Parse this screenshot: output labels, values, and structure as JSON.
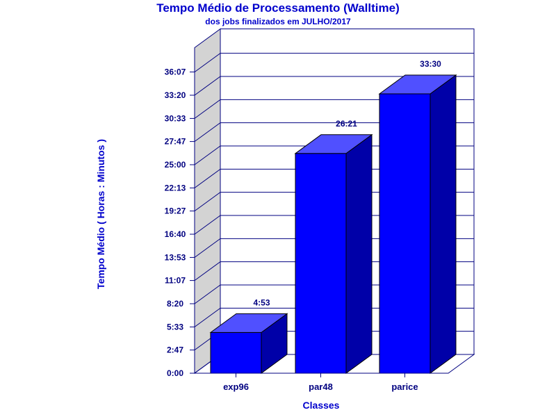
{
  "chart_data": {
    "type": "bar",
    "title": "Tempo Médio de Processamento (Walltime)",
    "subtitle": "dos jobs finalizados em JULHO/2017",
    "xlabel": "Classes",
    "ylabel": "Tempo Médio ( Horas : Minutos )",
    "categories": [
      "exp96",
      "par48",
      "parice"
    ],
    "values": [
      4.883,
      26.35,
      33.5
    ],
    "value_labels": [
      "4:53",
      "26:21",
      "33:30"
    ],
    "ylim": [
      0,
      39.033
    ],
    "yticks": [
      0,
      2.783,
      5.55,
      8.333,
      11.117,
      13.883,
      16.667,
      19.45,
      22.217,
      25.0,
      27.783,
      30.55,
      33.333,
      36.117
    ],
    "ytick_labels": [
      "0:00",
      "2:47",
      "5:33",
      "8:20",
      "11:07",
      "13:53",
      "16:40",
      "19:27",
      "22:13",
      "25:00",
      "27:47",
      "30:33",
      "33:20",
      "36:07"
    ],
    "grid": true,
    "legend": "none",
    "colors": {
      "bar_front": "#0000ff",
      "bar_top": "#5050ff",
      "bar_side": "#0000a8",
      "grid": "#000080",
      "wall": "#d3d3d3",
      "text": "#0000cc"
    }
  }
}
